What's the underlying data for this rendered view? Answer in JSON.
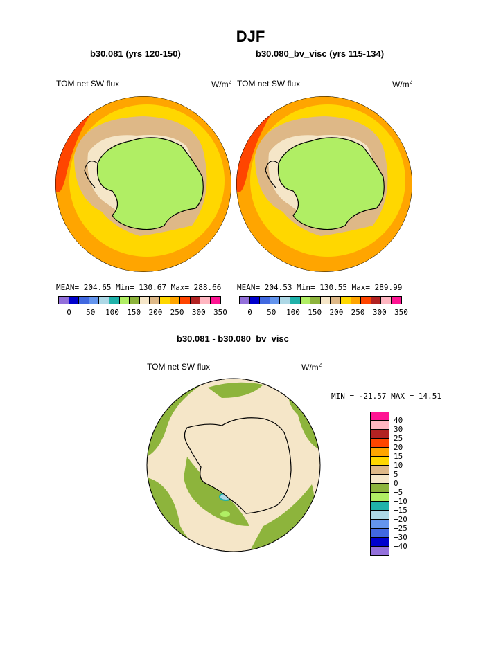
{
  "title": "DJF",
  "panel_left": {
    "subtitle": "b30.081 (yrs 120-150)",
    "field_label": "TOM net SW flux",
    "units_base": "W/m",
    "units_exp": "2",
    "stats": "MEAN= 204.65   Min= 130.67   Max= 288.66"
  },
  "panel_right": {
    "subtitle": "b30.080_bv_visc (yrs 115-134)",
    "field_label": "TOM net SW flux",
    "units_base": "W/m",
    "units_exp": "2",
    "stats": "MEAN= 204.53   Min= 130.55   Max= 289.99"
  },
  "panel_diff": {
    "subtitle": "b30.081 - b30.080_bv_visc",
    "field_label": "TOM net SW flux",
    "units_base": "W/m",
    "units_exp": "2",
    "minmax": "MIN = -21.57 MAX =  14.51"
  },
  "colorbar_abs": {
    "colors": [
      "#9370db",
      "#0000cd",
      "#4169e1",
      "#6495ed",
      "#add8e6",
      "#20b2aa",
      "#b0ee64",
      "#8db43c",
      "#f5e6c8",
      "#deb887",
      "#ffd700",
      "#ffa500",
      "#ff4500",
      "#b22222",
      "#ffb6c1",
      "#ff1493"
    ],
    "tick_labels": [
      "0",
      "50",
      "100",
      "150",
      "200",
      "250",
      "300",
      "350"
    ]
  },
  "colorbar_diff": {
    "colors": [
      "#ff1493",
      "#ffb6c1",
      "#b22222",
      "#ff4500",
      "#ffa500",
      "#ffd700",
      "#deb887",
      "#f5e6c8",
      "#8db43c",
      "#b0ee64",
      "#20b2aa",
      "#add8e6",
      "#6495ed",
      "#4169e1",
      "#0000cd",
      "#9370db"
    ],
    "tick_labels": [
      "40",
      "30",
      "25",
      "20",
      "15",
      "10",
      "5",
      "0",
      "−5",
      "−10",
      "−15",
      "−20",
      "−25",
      "−30",
      "−40"
    ]
  },
  "chart_data": [
    {
      "type": "heatmap",
      "title": "b30.081 (yrs 120-150)",
      "label": "TOM net SW flux",
      "units": "W/m2",
      "mean": 204.65,
      "min": 130.67,
      "max": 288.66,
      "levels": [
        0,
        50,
        100,
        150,
        200,
        250,
        300,
        350
      ]
    },
    {
      "type": "heatmap",
      "title": "b30.080_bv_visc (yrs 115-134)",
      "label": "TOM net SW flux",
      "units": "W/m2",
      "mean": 204.53,
      "min": 130.55,
      "max": 289.99,
      "levels": [
        0,
        50,
        100,
        150,
        200,
        250,
        300,
        350
      ]
    },
    {
      "type": "heatmap",
      "title": "b30.081 - b30.080_bv_visc",
      "label": "TOM net SW flux",
      "units": "W/m2",
      "min": -21.57,
      "max": 14.51,
      "levels": [
        -40,
        -30,
        -25,
        -20,
        -15,
        -10,
        -5,
        0,
        5,
        10,
        15,
        20,
        25,
        30,
        40
      ]
    }
  ]
}
